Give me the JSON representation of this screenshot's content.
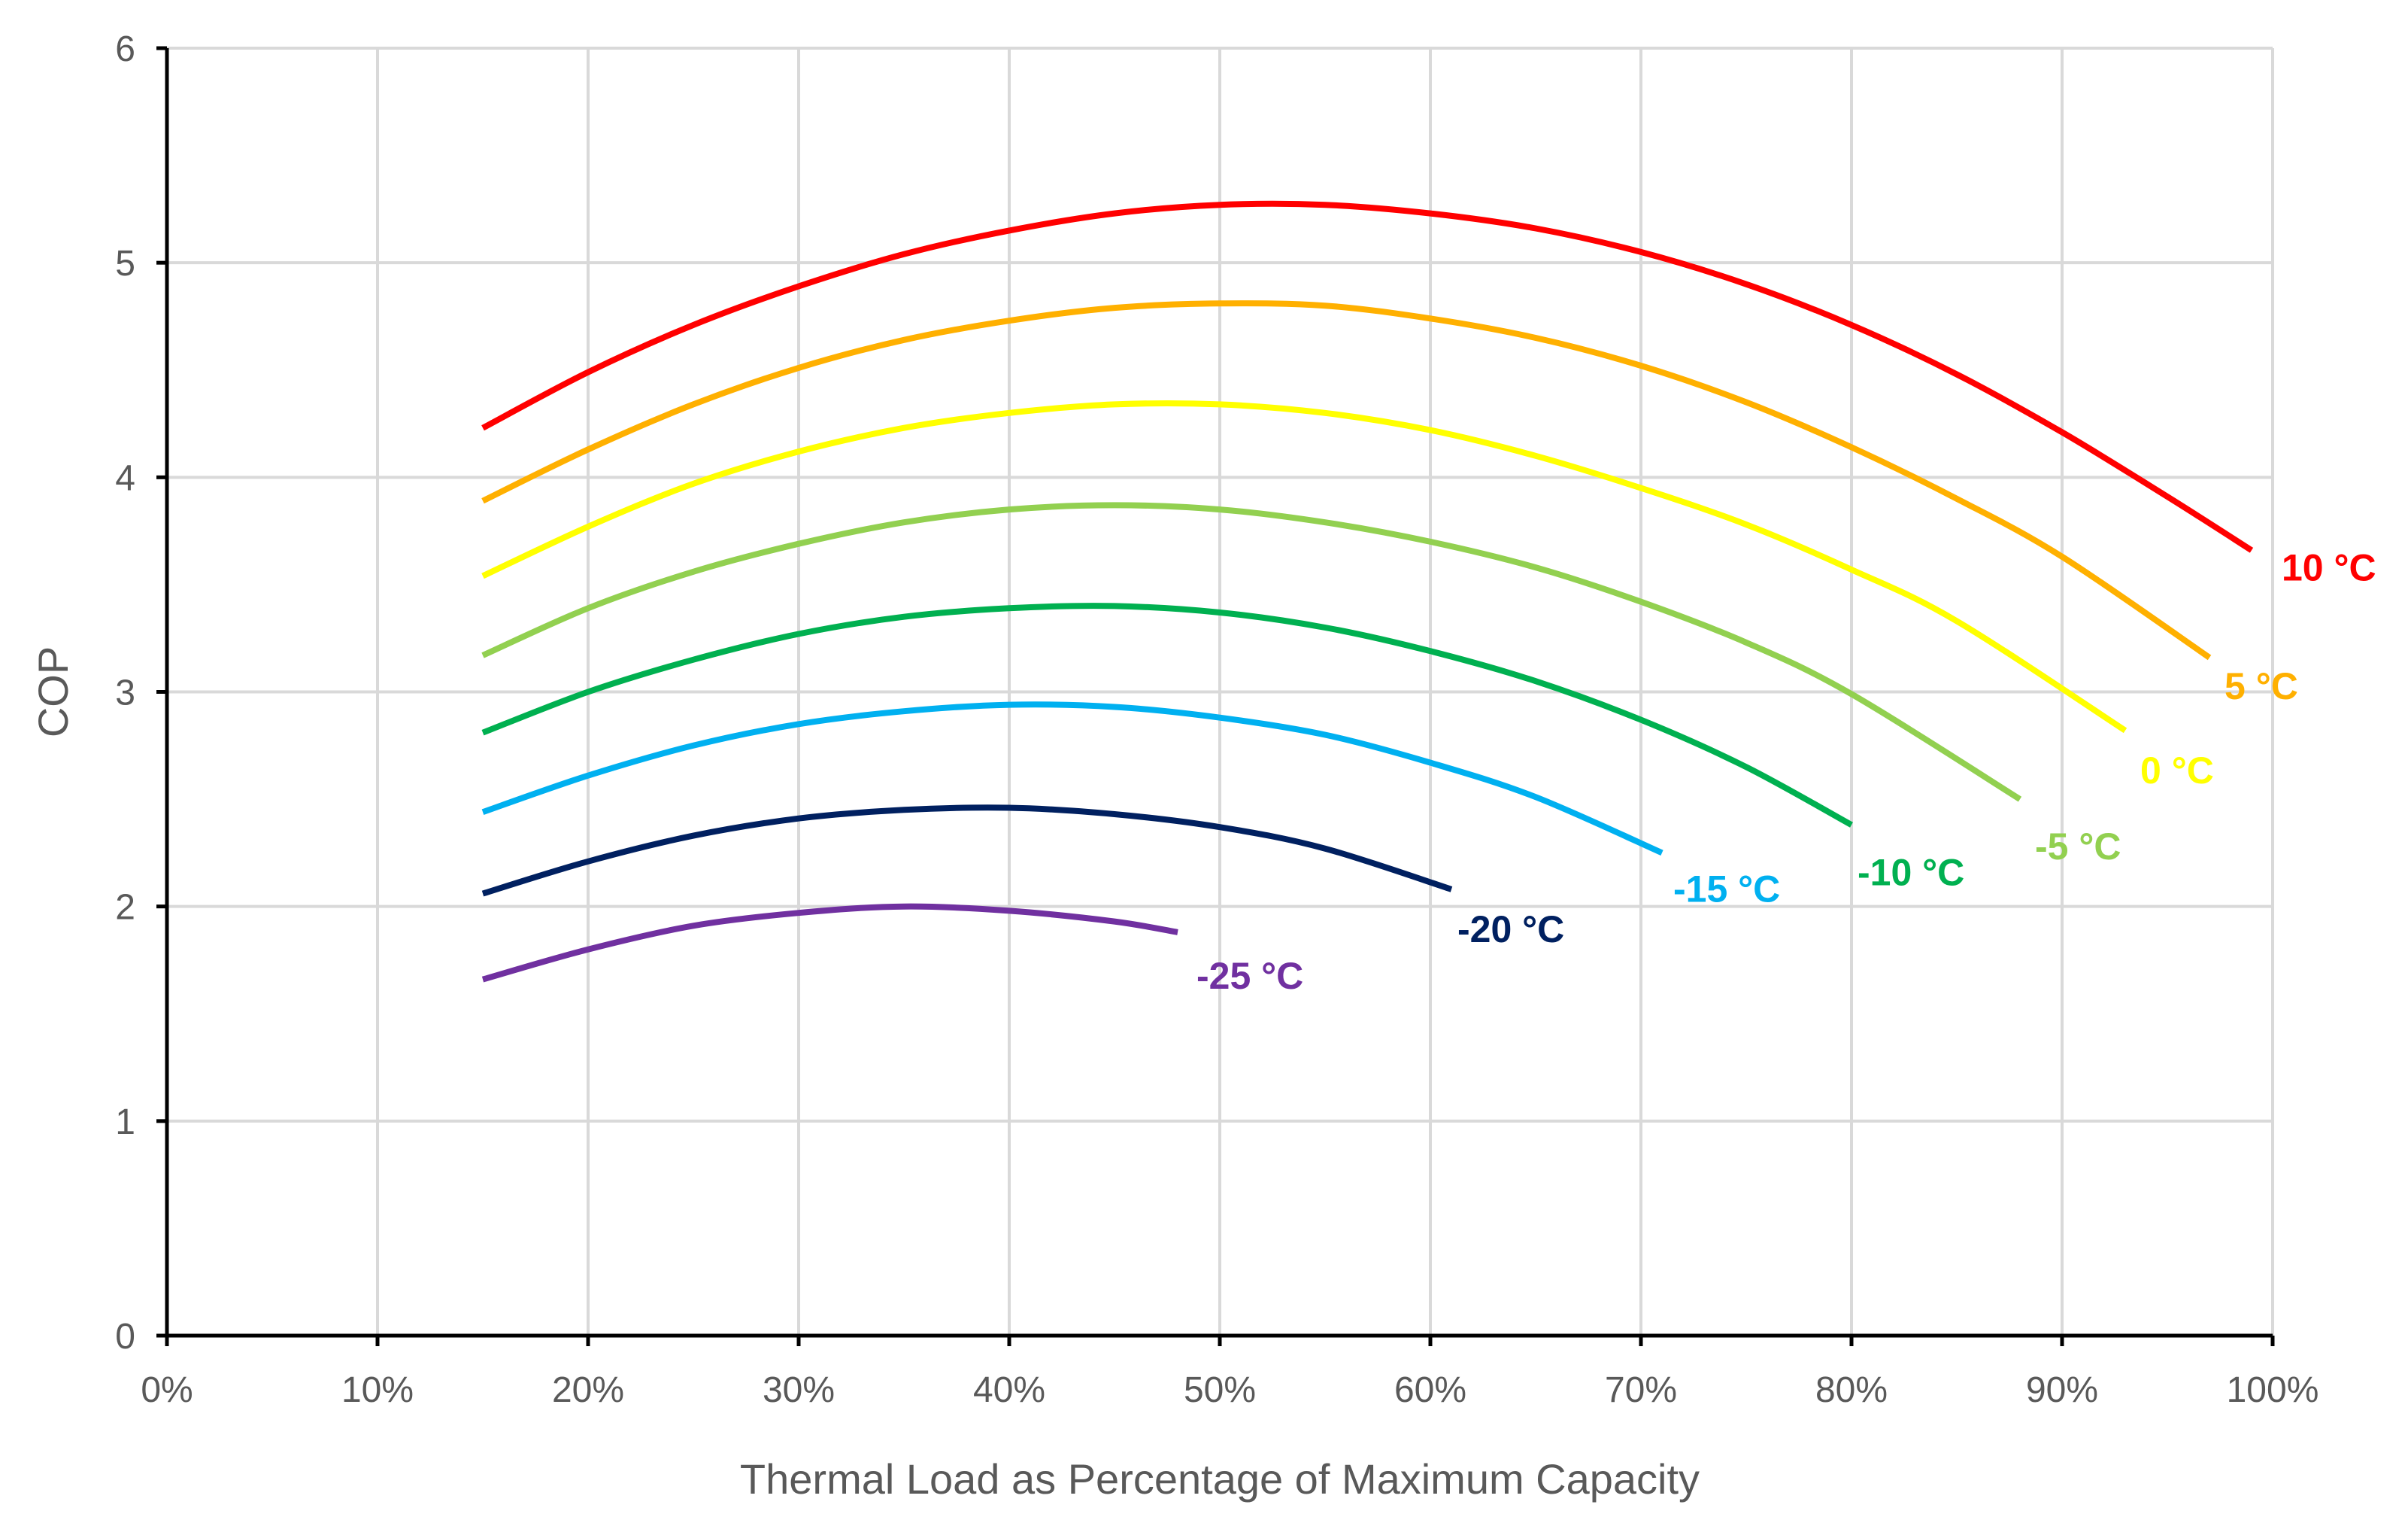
{
  "chart_data": {
    "type": "line",
    "title": "",
    "xlabel": "Thermal Load as Percentage of Maximum Capacity",
    "ylabel": "COP",
    "xlim": [
      0,
      100
    ],
    "ylim": [
      0,
      6
    ],
    "grid": true,
    "legend": "none (inline end labels)",
    "x_tick_labels": [
      "0%",
      "10%",
      "20%",
      "30%",
      "40%",
      "50%",
      "60%",
      "70%",
      "80%",
      "90%",
      "100%"
    ],
    "y_tick_labels": [
      "0",
      "1",
      "2",
      "3",
      "4",
      "5",
      "6"
    ],
    "series": [
      {
        "name": "10 °C",
        "color": "#ff0000",
        "x": [
          15,
          20,
          25,
          30,
          35,
          40,
          45,
          50,
          55,
          60,
          65,
          70,
          75,
          80,
          85,
          90,
          95,
          99
        ],
        "y": [
          4.23,
          4.49,
          4.71,
          4.89,
          5.04,
          5.15,
          5.23,
          5.27,
          5.27,
          5.23,
          5.16,
          5.05,
          4.9,
          4.71,
          4.48,
          4.21,
          3.91,
          3.66
        ]
      },
      {
        "name": "5 °C",
        "color": "#ffb000",
        "x": [
          15,
          20,
          25,
          30,
          35,
          40,
          45,
          50,
          55,
          60,
          65,
          70,
          75,
          80,
          85,
          90,
          97
        ],
        "y": [
          3.89,
          4.13,
          4.34,
          4.51,
          4.64,
          4.73,
          4.79,
          4.81,
          4.8,
          4.74,
          4.65,
          4.52,
          4.35,
          4.14,
          3.9,
          3.63,
          3.16
        ]
      },
      {
        "name": "0 °C",
        "color": "#ffff00",
        "x": [
          15,
          20,
          25,
          30,
          35,
          40,
          45,
          50,
          55,
          60,
          65,
          70,
          75,
          80,
          85,
          93
        ],
        "y": [
          3.54,
          3.77,
          3.97,
          4.12,
          4.23,
          4.3,
          4.34,
          4.34,
          4.3,
          4.22,
          4.1,
          3.95,
          3.78,
          3.57,
          3.33,
          2.82
        ]
      },
      {
        "name": "-5 °C",
        "color": "#92d050",
        "x": [
          15,
          20,
          25,
          30,
          35,
          40,
          45,
          50,
          55,
          60,
          65,
          70,
          75,
          80,
          88
        ],
        "y": [
          3.17,
          3.39,
          3.56,
          3.69,
          3.79,
          3.85,
          3.87,
          3.85,
          3.79,
          3.7,
          3.58,
          3.42,
          3.23,
          2.99,
          2.5
        ]
      },
      {
        "name": "-10 °C",
        "color": "#00b050",
        "x": [
          15,
          20,
          25,
          30,
          35,
          40,
          45,
          50,
          55,
          60,
          65,
          70,
          75,
          80
        ],
        "y": [
          2.81,
          3.0,
          3.15,
          3.27,
          3.35,
          3.39,
          3.4,
          3.37,
          3.3,
          3.19,
          3.05,
          2.87,
          2.65,
          2.38
        ]
      },
      {
        "name": "-15 °C",
        "color": "#00b0f0",
        "x": [
          15,
          20,
          25,
          30,
          35,
          40,
          45,
          50,
          55,
          60,
          65,
          71
        ],
        "y": [
          2.44,
          2.61,
          2.75,
          2.85,
          2.91,
          2.94,
          2.93,
          2.88,
          2.8,
          2.67,
          2.51,
          2.25
        ]
      },
      {
        "name": "-20 °C",
        "color": "#002060",
        "x": [
          15,
          20,
          25,
          30,
          35,
          40,
          45,
          50,
          55,
          61
        ],
        "y": [
          2.06,
          2.21,
          2.33,
          2.41,
          2.45,
          2.46,
          2.43,
          2.37,
          2.27,
          2.08
        ]
      },
      {
        "name": "-25 °C",
        "color": "#7030a0",
        "x": [
          15,
          20,
          25,
          30,
          35,
          40,
          45,
          48
        ],
        "y": [
          1.66,
          1.8,
          1.91,
          1.97,
          2.0,
          1.98,
          1.93,
          1.88
        ]
      }
    ]
  }
}
